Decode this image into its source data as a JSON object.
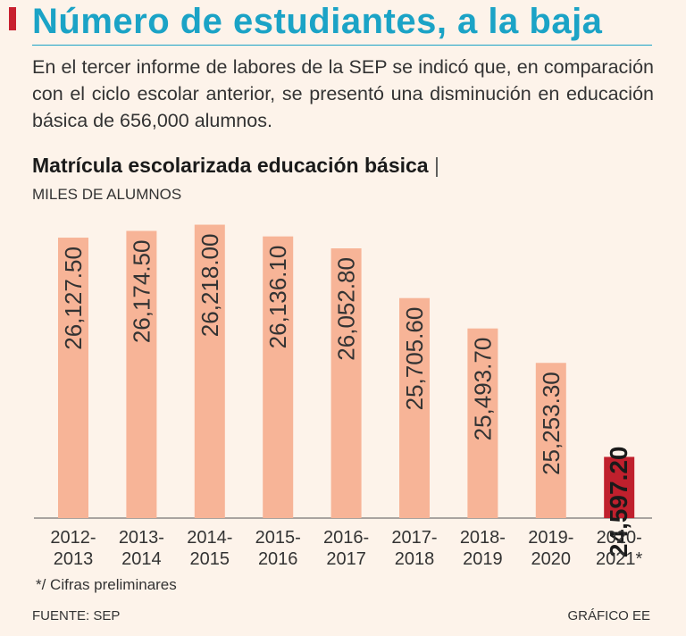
{
  "headline": "Número de estudiantes, a la baja",
  "intro": "En el tercer informe de labores de la SEP se indicó que, en comparación con el ciclo escolar anterior, se presentó una disminución en educación básica de 656,000 alumnos.",
  "colors": {
    "accent": "#c8202f",
    "headline": "#1ba3c6",
    "bar": "#f7b497",
    "bar_highlight": "#c0202d"
  },
  "chart_data": {
    "type": "bar",
    "title": "Matrícula escolarizada educación básica",
    "title_separator": "|",
    "ylabel": "MILES DE ALUMNOS",
    "categories": [
      [
        "2012-",
        "2013"
      ],
      [
        "2013-",
        "2014"
      ],
      [
        "2014-",
        "2015"
      ],
      [
        "2015-",
        "2016"
      ],
      [
        "2016-",
        "2017"
      ],
      [
        "2017-",
        "2018"
      ],
      [
        "2018-",
        "2019"
      ],
      [
        "2019-",
        "2020"
      ],
      [
        "2020-",
        "2021*"
      ]
    ],
    "values": [
      26127.5,
      26174.5,
      26218.0,
      26136.1,
      26052.8,
      25705.6,
      25493.7,
      25253.3,
      24597.2
    ],
    "labels": [
      "26,127.50",
      "26,174.50",
      "26,218.00",
      "26,136.10",
      "26,052.80",
      "25,705.60",
      "25,493.70",
      "25,253.30",
      "24,597.20"
    ],
    "highlight_index": 8,
    "ylim": [
      24170,
      26240
    ]
  },
  "footnote": "*/ Cifras preliminares",
  "source": "FUENTE: SEP",
  "credit": "GRÁFICO EE"
}
